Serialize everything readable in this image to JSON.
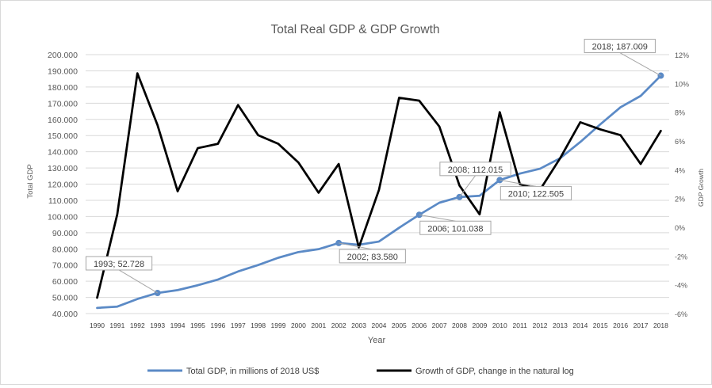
{
  "chart_data": {
    "type": "line",
    "title": "Total Real GDP & GDP Growth",
    "xlabel": "Year",
    "ylabel": "Total GDP",
    "y2label": "GDP Growth",
    "ylim": [
      40,
      200
    ],
    "y2lim": [
      -6,
      12
    ],
    "yticks": [
      "40.000",
      "50.000",
      "60.000",
      "70.000",
      "80.000",
      "90.000",
      "100.000",
      "110.000",
      "120.000",
      "130.000",
      "140.000",
      "150.000",
      "160.000",
      "170.000",
      "180.000",
      "190.000",
      "200.000"
    ],
    "y2ticks": [
      "-6%",
      "-4%",
      "-2%",
      "0%",
      "2%",
      "4%",
      "6%",
      "8%",
      "10%",
      "12%"
    ],
    "categories": [
      "1990",
      "1991",
      "1992",
      "1993",
      "1994",
      "1995",
      "1996",
      "1997",
      "1998",
      "1999",
      "2000",
      "2001",
      "2002",
      "2003",
      "2004",
      "2005",
      "2006",
      "2007",
      "2008",
      "2009",
      "2010",
      "2011",
      "2012",
      "2013",
      "2014",
      "2015",
      "2016",
      "2017",
      "2018"
    ],
    "series": [
      {
        "name": "Total GDP, in millions of 2018 US$",
        "axis": "left",
        "color": "#5b8ac6",
        "values": [
          43.5,
          44.3,
          49.0,
          52.728,
          54.5,
          57.5,
          61.0,
          66.0,
          70.0,
          74.5,
          78.0,
          79.8,
          83.58,
          82.5,
          84.5,
          93.0,
          101.038,
          108.5,
          112.015,
          112.8,
          122.505,
          126.5,
          129.5,
          136.0,
          146.0,
          157.0,
          167.5,
          174.5,
          187.009
        ]
      },
      {
        "name": "Growth of GDP, change in the natural log",
        "axis": "right",
        "color": "#000000",
        "values": [
          -4.9,
          0.9,
          10.7,
          7.1,
          2.5,
          5.5,
          5.8,
          8.5,
          6.4,
          5.8,
          4.5,
          2.4,
          4.4,
          -1.4,
          2.6,
          9.0,
          8.8,
          7.0,
          2.9,
          0.9,
          8.0,
          3.0,
          2.6,
          4.8,
          7.3,
          6.8,
          6.4,
          4.4,
          6.7
        ]
      }
    ],
    "annotations": [
      {
        "index": 3,
        "text": "1993; 52.728",
        "label_pos": "above-left"
      },
      {
        "index": 12,
        "text": "2002; 83.580",
        "label_pos": "below-right"
      },
      {
        "index": 16,
        "text": "2006; 101.038",
        "label_pos": "below-right"
      },
      {
        "index": 18,
        "text": "2008; 112.015",
        "label_pos": "above"
      },
      {
        "index": 20,
        "text": "2010; 122.505",
        "label_pos": "below-right"
      },
      {
        "index": 28,
        "text": "2018; 187.009",
        "label_pos": "above-left"
      }
    ],
    "grid": true,
    "legend": "bottom"
  }
}
